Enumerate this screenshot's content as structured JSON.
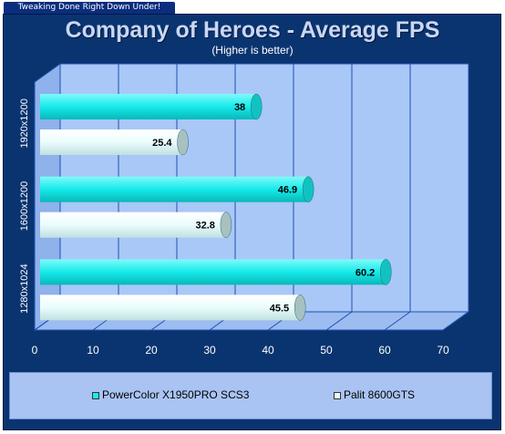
{
  "banner": {
    "tagline": "Tweaking Done Right Down Under!"
  },
  "colors": {
    "background": "#0a3470",
    "plot": "#a9c8f7",
    "series1": "#18eeee",
    "series2": "#e9fbfb"
  },
  "chart_data": {
    "type": "bar",
    "orientation": "horizontal",
    "title": "Company of Heroes - Average FPS",
    "subtitle": "(Higher is better)",
    "categories": [
      "1920x1200",
      "1600x1200",
      "1280x1024"
    ],
    "series": [
      {
        "name": "PowerColor X1950PRO SCS3",
        "values": [
          38,
          46.9,
          60.2
        ],
        "labels": [
          "38",
          "46.9",
          "60.2"
        ],
        "color": "#18eeee"
      },
      {
        "name": "Palit 8600GTS",
        "values": [
          25.4,
          32.8,
          45.5
        ],
        "labels": [
          "25.4",
          "32.8",
          "45.5"
        ],
        "color": "#e9fbfb"
      }
    ],
    "xlim": [
      0,
      70
    ],
    "xticks": [
      "0",
      "10",
      "20",
      "30",
      "40",
      "50",
      "60",
      "70"
    ],
    "grid": true,
    "legend_position": "bottom"
  }
}
